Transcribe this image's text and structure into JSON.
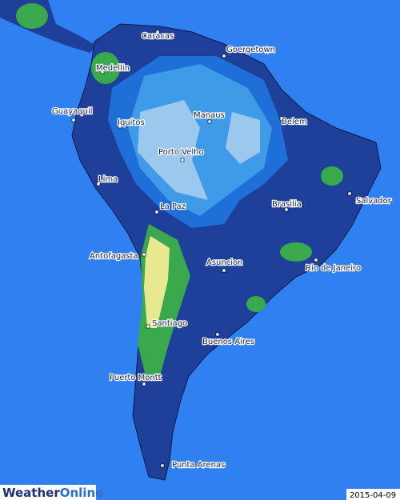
{
  "cities": [
    {
      "name": "Caracas"
    },
    {
      "name": "Goergetown"
    },
    {
      "name": "Medellin"
    },
    {
      "name": "Guayaquil"
    },
    {
      "name": "Iquitos"
    },
    {
      "name": "Manaus"
    },
    {
      "name": "Belem"
    },
    {
      "name": "Porto Velho"
    },
    {
      "name": "Lima"
    },
    {
      "name": "Salvador"
    },
    {
      "name": "La Paz"
    },
    {
      "name": "Brasilia"
    },
    {
      "name": "Antofagasta"
    },
    {
      "name": "Asuncion"
    },
    {
      "name": "Rio de Janeiro"
    },
    {
      "name": "Santiago"
    },
    {
      "name": "Buenos Aires"
    },
    {
      "name": "Puerto Montt"
    },
    {
      "name": "Punta Arenas"
    }
  ],
  "logo": {
    "part1": "Weather",
    "part2": "Online"
  },
  "date": "2015-04-09"
}
